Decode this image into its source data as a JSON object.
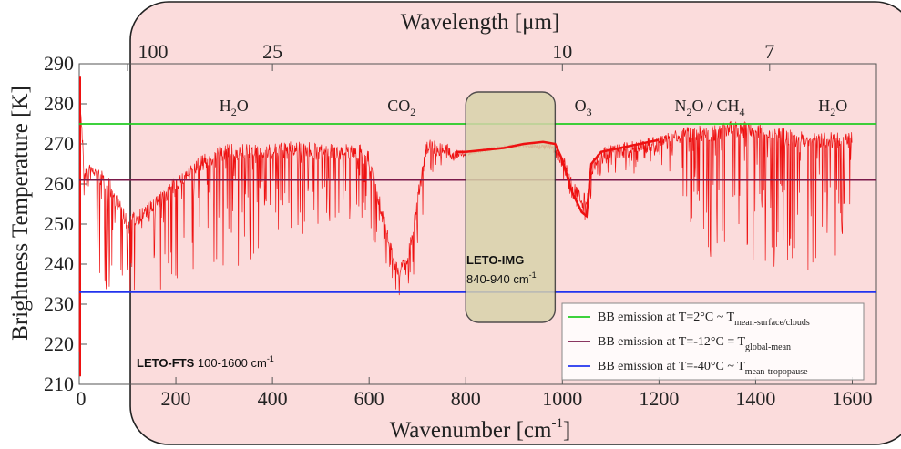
{
  "chart_data": {
    "type": "line",
    "xlabel": "Wavenumber [cm",
    "xlabel_sup": "-1",
    "xlabel_end": "]",
    "ylabel": "Brightness Temperature [K]",
    "top_axis_label": "Wavelength [μm]",
    "xlim": [
      0,
      1650
    ],
    "ylim": [
      210,
      290
    ],
    "x_ticks": [
      0,
      200,
      400,
      600,
      800,
      1000,
      1200,
      1400,
      1600
    ],
    "x_tick_labels": [
      "0",
      "200",
      "400",
      "600",
      "800",
      "1000",
      "1200",
      "1400",
      "1600"
    ],
    "y_ticks": [
      210,
      220,
      230,
      240,
      250,
      260,
      270,
      280,
      290
    ],
    "y_tick_labels": [
      "210",
      "220",
      "230",
      "240",
      "250",
      "260",
      "270",
      "280",
      "290"
    ],
    "top_ticks": [
      {
        "label": "100",
        "wavenumber": 100
      },
      {
        "label": "25",
        "wavenumber": 400
      },
      {
        "label": "10",
        "wavenumber": 1000
      },
      {
        "label": "7",
        "wavenumber": 1429
      }
    ],
    "band_labels": [
      {
        "main": "H",
        "sub": "2",
        "tail": "O",
        "wavenumber": 320
      },
      {
        "main": "CO",
        "sub": "2",
        "tail": "",
        "wavenumber": 667
      },
      {
        "main": "O",
        "sub": "3",
        "tail": "",
        "wavenumber": 1043
      },
      {
        "main": "N",
        "sub": "2",
        "tail": "O / CH",
        "sub2": "4",
        "wavenumber": 1305
      },
      {
        "main": "H",
        "sub": "2",
        "tail": "O",
        "wavenumber": 1560
      }
    ],
    "reference_lines": [
      {
        "y": 275,
        "color": "#22cc22",
        "legend": "BB emission at T=2°C ~ T",
        "legend_sub": "mean-surface/clouds"
      },
      {
        "y": 261,
        "color": "#7a1a4a",
        "legend": "BB emission at T=-12°C = T",
        "legend_sub": "global-mean"
      },
      {
        "y": 233,
        "color": "#2233ee",
        "legend": "BB emission at T=-40°C  ~ T",
        "legend_sub": "mean-tropopause"
      }
    ],
    "regions": {
      "fts": {
        "label_bold": "LETO-FTS",
        "label_rest": " 100-1600 cm",
        "label_sup": "-1",
        "x_range": [
          100,
          1600
        ],
        "fill": "#fbdcdc"
      },
      "img": {
        "label_bold": "LETO-IMG",
        "label_range": "840-940 cm",
        "label_sup": "-1",
        "x_range": [
          800,
          985
        ],
        "fill": "#d8d3ab"
      }
    },
    "series": [
      {
        "color": "#ee1111",
        "envelope_x": [
          0,
          10,
          30,
          60,
          100,
          150,
          200,
          250,
          300,
          350,
          400,
          450,
          500,
          550,
          580,
          600,
          620,
          640,
          660,
          680,
          700,
          720,
          740,
          760,
          780,
          800,
          840,
          900,
          940,
          980,
          1000,
          1020,
          1040,
          1050,
          1060,
          1080,
          1100,
          1150,
          1200,
          1250,
          1280,
          1300,
          1320,
          1350,
          1400,
          1450,
          1500,
          1550,
          1580,
          1600
        ],
        "envelope_top": [
          287,
          265,
          265,
          262,
          252,
          256,
          262,
          267,
          270,
          270,
          270,
          271,
          270,
          270,
          270,
          268,
          258,
          248,
          240,
          243,
          258,
          272,
          271,
          270,
          269,
          268,
          269,
          270,
          270,
          270,
          268,
          262,
          258,
          258,
          266,
          269,
          270,
          271,
          272,
          274,
          275,
          274,
          275,
          276,
          275,
          274,
          273,
          273,
          273,
          273
        ],
        "envelope_bot": [
          212,
          250,
          238,
          232,
          232,
          232,
          233,
          234,
          236,
          240,
          244,
          246,
          248,
          250,
          252,
          248,
          242,
          236,
          231,
          232,
          240,
          258,
          264,
          265,
          266,
          267,
          268,
          269,
          269,
          268,
          262,
          255,
          252,
          250,
          256,
          262,
          262,
          262,
          262,
          255,
          246,
          240,
          240,
          240,
          240,
          238,
          236,
          236,
          245,
          258
        ],
        "smooth_x": [
          780,
          800,
          840,
          880,
          920,
          960,
          985,
          1000,
          1020,
          1040,
          1050,
          1060,
          1080,
          1120,
          1160,
          1200
        ],
        "smooth_y": [
          268,
          268,
          268.5,
          269,
          270,
          270.5,
          270,
          266,
          258,
          253,
          252,
          265,
          268,
          269,
          270,
          271
        ]
      }
    ]
  }
}
